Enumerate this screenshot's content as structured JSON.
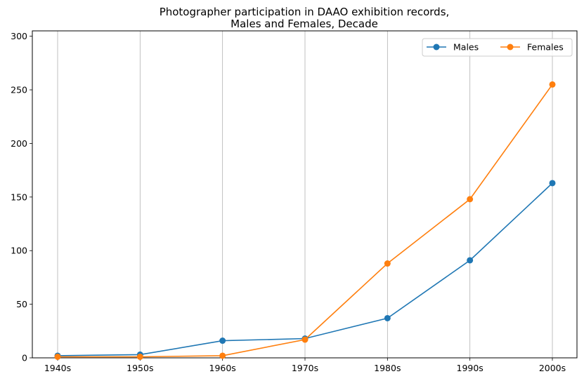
{
  "chart_data": {
    "type": "line",
    "title_line1": "Photographer participation in DAAO exhibition records,",
    "title_line2": "Males and Females, Decade",
    "xlabel": "",
    "ylabel": "",
    "categories": [
      "1940s",
      "1950s",
      "1960s",
      "1970s",
      "1980s",
      "1990s",
      "2000s"
    ],
    "ylim": [
      0,
      305
    ],
    "yticks": [
      0,
      50,
      100,
      150,
      200,
      250,
      300
    ],
    "grid": "vertical",
    "legend_position": "top-right",
    "series": [
      {
        "name": "Males",
        "color": "#1f77b4",
        "values": [
          2,
          3,
          16,
          18,
          37,
          91,
          163
        ]
      },
      {
        "name": "Females",
        "color": "#ff7f0e",
        "values": [
          1,
          1,
          2,
          17,
          88,
          148,
          255
        ]
      }
    ]
  }
}
